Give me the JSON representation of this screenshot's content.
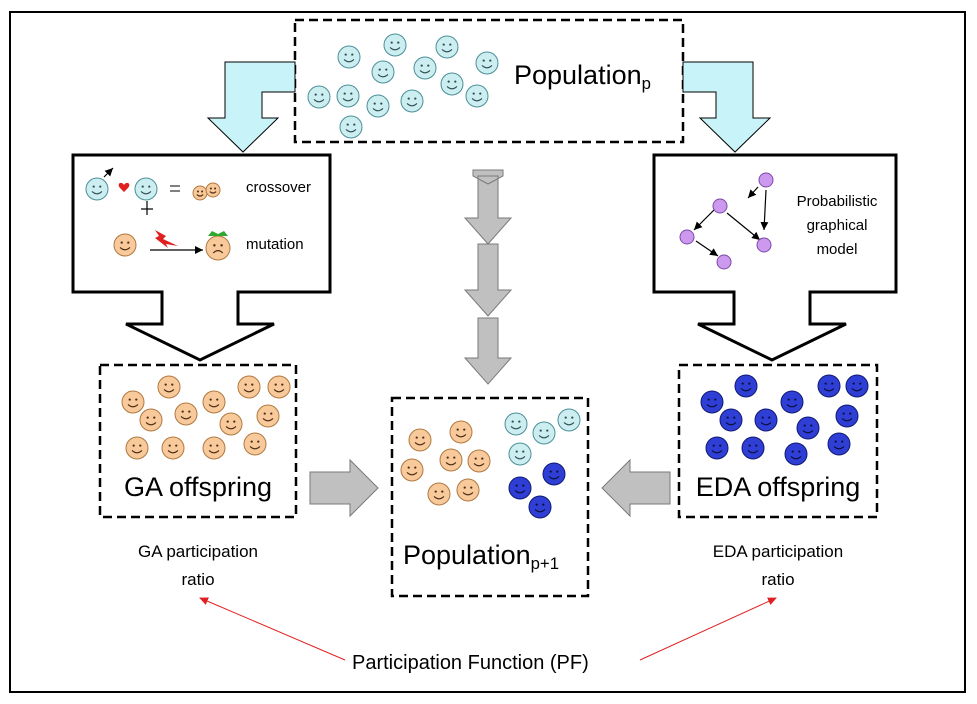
{
  "population_top": {
    "label": "Population",
    "subscript": "p"
  },
  "population_next": {
    "label": "Population",
    "subscript": "p+1"
  },
  "ga_operators": {
    "crossover": "crossover",
    "mutation": "mutation"
  },
  "eda_model": {
    "line1": "Probabilistic",
    "line2": "graphical",
    "line3": "model"
  },
  "ga_offspring": "GA offspring",
  "eda_offspring": "EDA offspring",
  "ga_ratio": {
    "line1": "GA participation",
    "line2": "ratio"
  },
  "eda_ratio": {
    "line1": "EDA participation",
    "line2": "ratio"
  },
  "pf_label": "Participation Function (PF)",
  "colors": {
    "cyan_face": "#cdeef0",
    "orange_face": "#f8c99a",
    "blue_face": "#2f3fd6",
    "purple_node": "#cc99ee",
    "light_arrow": "#c8f3f8",
    "gray_arrow": "#c0c0c0",
    "pf_arrow": "#e02020"
  }
}
